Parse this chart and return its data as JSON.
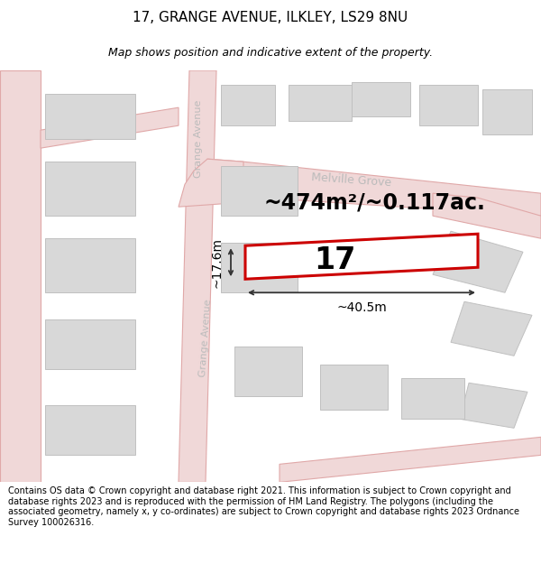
{
  "title": "17, GRANGE AVENUE, ILKLEY, LS29 8NU",
  "subtitle": "Map shows position and indicative extent of the property.",
  "footer": "Contains OS data © Crown copyright and database right 2021. This information is subject to Crown copyright and database rights 2023 and is reproduced with the permission of HM Land Registry. The polygons (including the associated geometry, namely x, y co-ordinates) are subject to Crown copyright and database rights 2023 Ordnance Survey 100026316.",
  "area_label": "~474m²/~0.117ac.",
  "number_label": "17",
  "width_label": "~40.5m",
  "height_label": "~17.6m",
  "map_bg": "#f2f2f2",
  "road_color": "#f0d8d8",
  "road_line_color": "#e0a8a8",
  "building_fill": "#d8d8d8",
  "building_outline": "#c0c0c0",
  "plot_outline": "#cc0000",
  "plot_fill": "#ffffff",
  "road_label_color": "#bbbbbb",
  "dim_line_color": "#333333",
  "title_fontsize": 11,
  "subtitle_fontsize": 9,
  "footer_fontsize": 7,
  "area_fontsize": 17,
  "number_fontsize": 24,
  "dim_fontsize": 10
}
